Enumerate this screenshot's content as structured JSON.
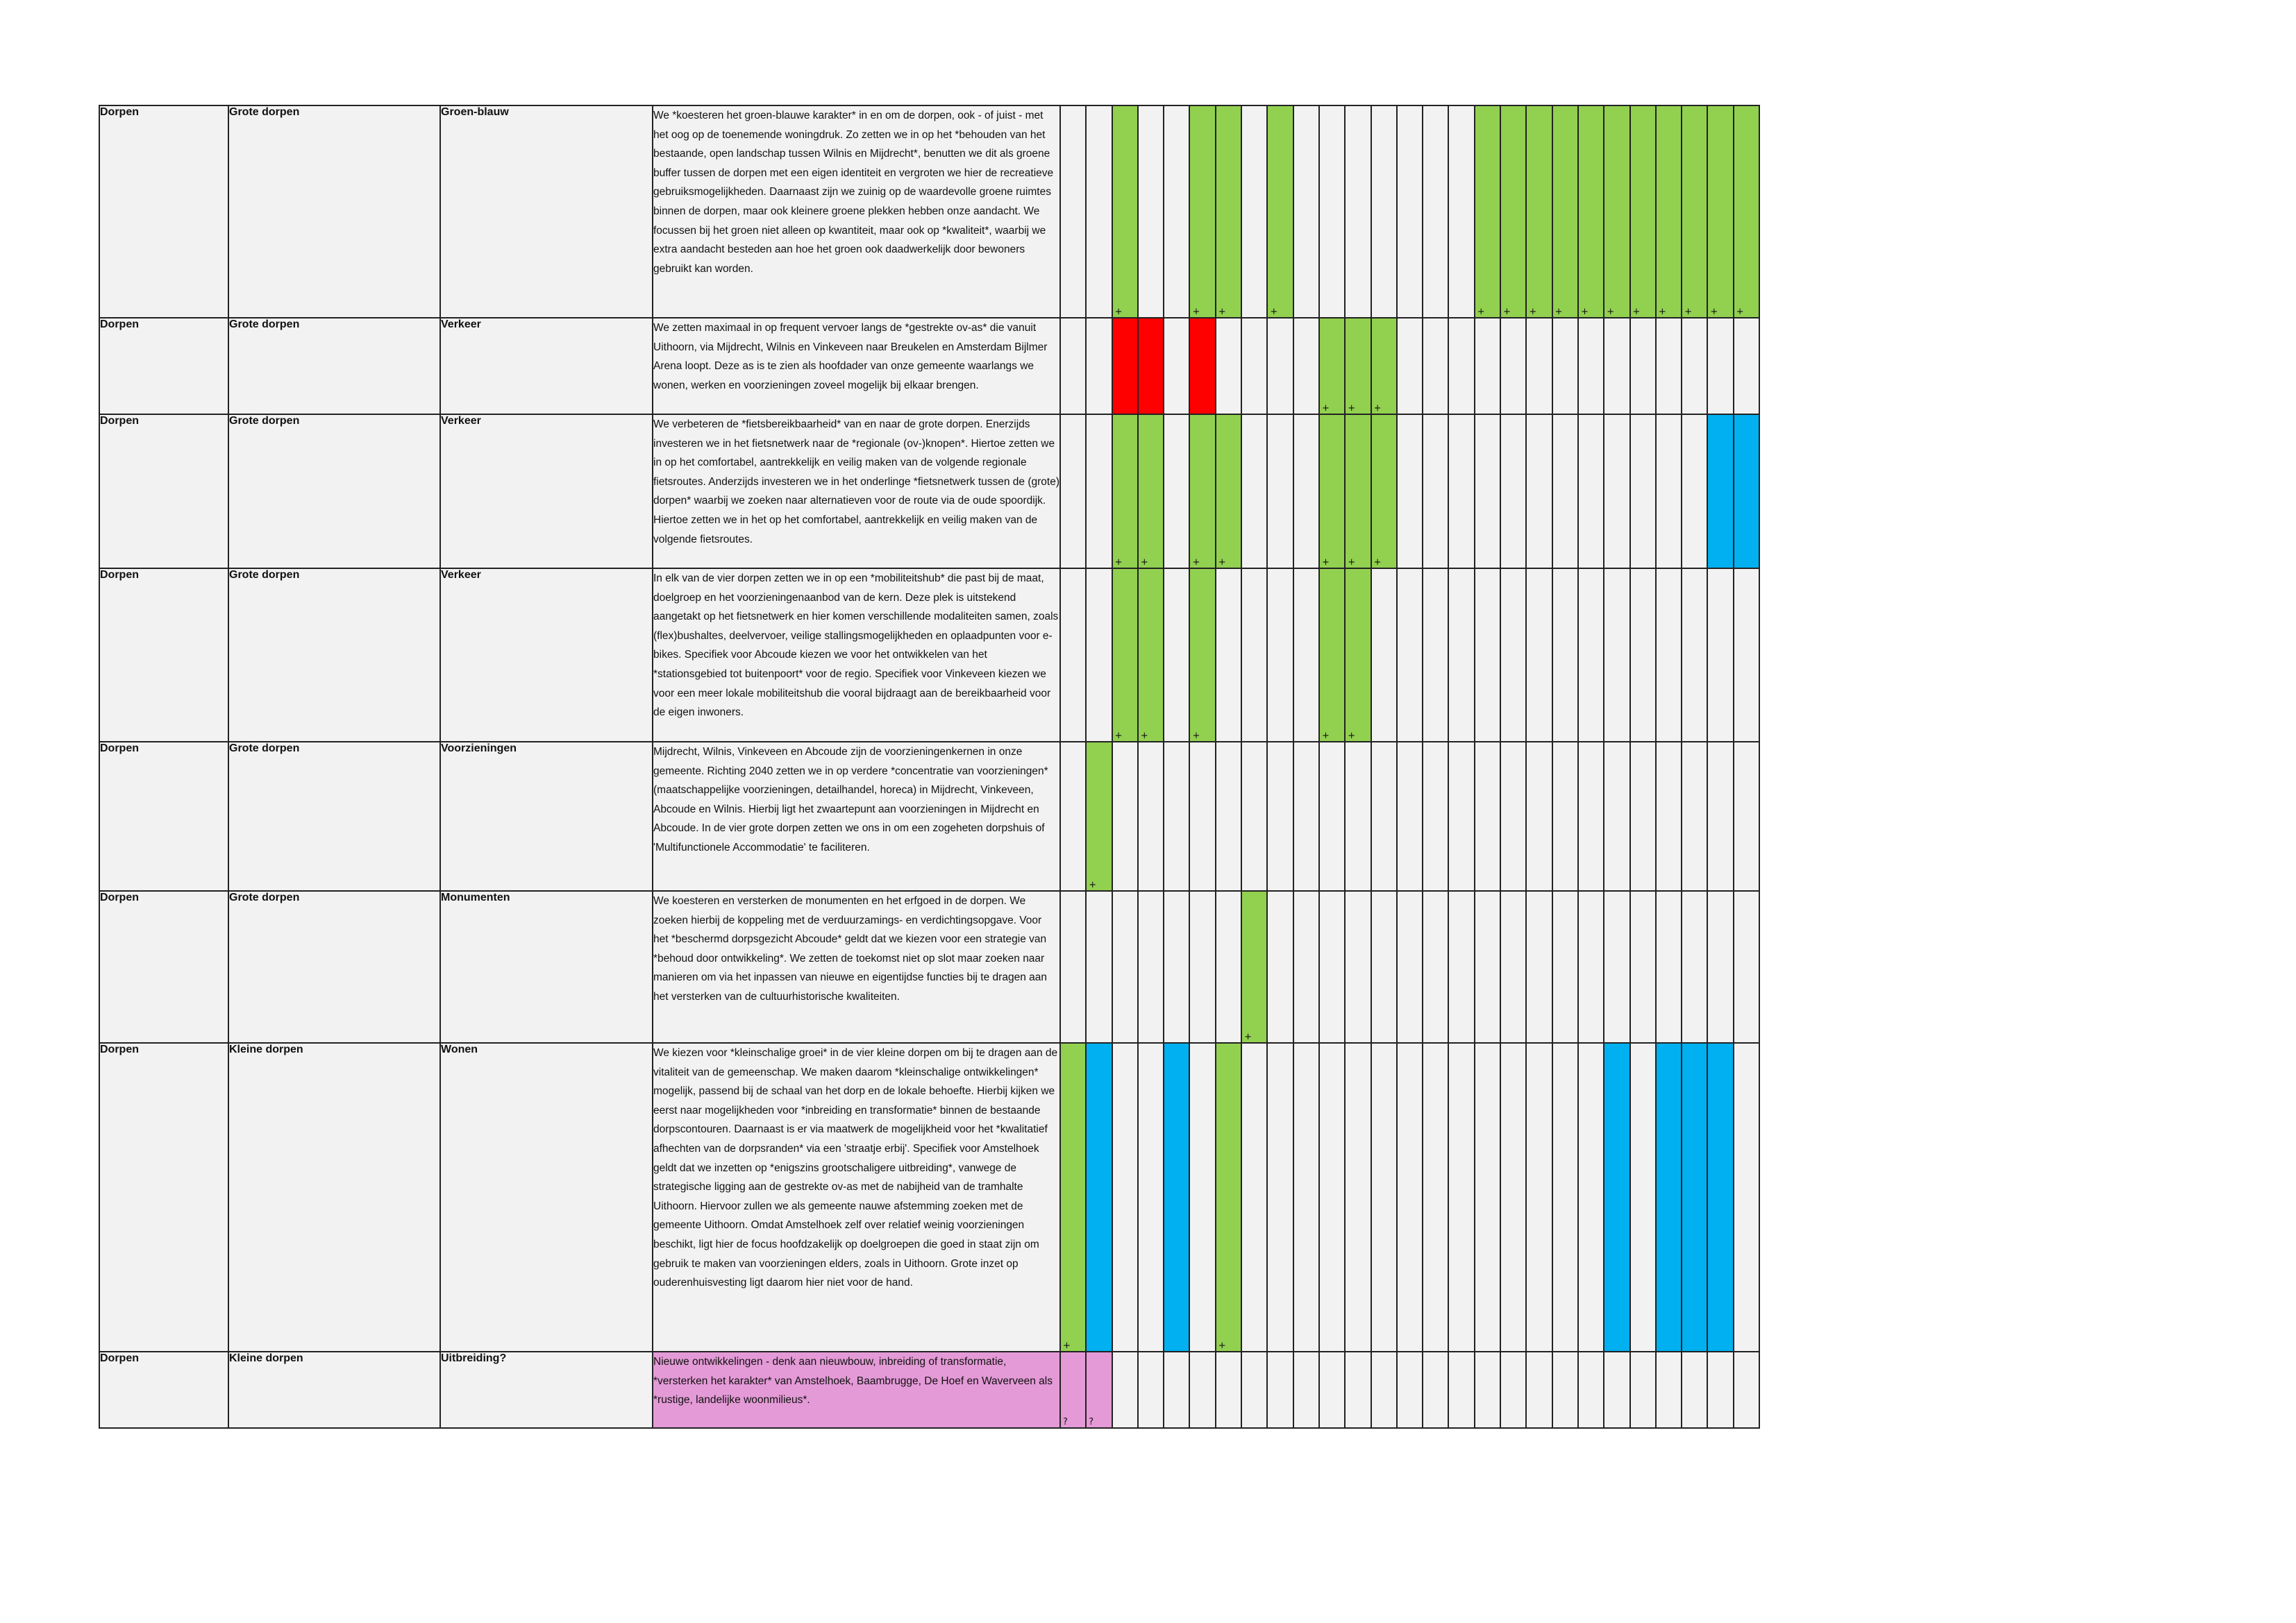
{
  "colors": {
    "green": "#92d050",
    "red": "#ff0000",
    "blue": "#00b0f0",
    "pink": "#e49ad7",
    "cell": "#f2f2f2"
  },
  "rows": [
    {
      "cat": "Dorpen",
      "sub": "Grote dorpen",
      "topic": "Groen-blauw",
      "text": "We *koesteren het groen-blauwe karakter* in en om de dorpen, ook - of juist - met het oog op de toenemende woningdruk. Zo zetten we in op het *behouden van het bestaande, open landschap tussen Wilnis en Mijdrecht*, benutten we dit als groene buffer tussen de dorpen met een eigen identiteit en vergroten we hier de recreatieve gebruiksmogelijkheden. Daarnaast zijn we zuinig op de waardevolle groene ruimtes binnen de dorpen, maar ook kleinere groene plekken hebben onze aandacht. We focussen bij het groen niet alleen op kwantiteit, maar ook op *kwaliteit*, waarbij we extra aandacht besteden aan hoe het groen ook daadwerkelijk door bewoners gebruikt kan worden.",
      "marks": [
        {
          "col": 3,
          "color": "green",
          "label": "+"
        },
        {
          "col": 6,
          "color": "green",
          "label": "+"
        },
        {
          "col": 7,
          "color": "green",
          "label": "+"
        },
        {
          "col": 9,
          "color": "green",
          "label": "+"
        },
        {
          "col": 17,
          "color": "green",
          "label": "+"
        },
        {
          "col": 18,
          "color": "green",
          "label": "+"
        },
        {
          "col": 19,
          "color": "green",
          "label": "+"
        },
        {
          "col": 20,
          "color": "green",
          "label": "+"
        },
        {
          "col": 21,
          "color": "green",
          "label": "+"
        },
        {
          "col": 22,
          "color": "green",
          "label": "+"
        },
        {
          "col": 23,
          "color": "green",
          "label": "+"
        },
        {
          "col": 24,
          "color": "green",
          "label": "+"
        },
        {
          "col": 25,
          "color": "green",
          "label": "+"
        },
        {
          "col": 26,
          "color": "green",
          "label": "+"
        },
        {
          "col": 27,
          "color": "green",
          "label": "+"
        }
      ]
    },
    {
      "cat": "Dorpen",
      "sub": "Grote dorpen",
      "topic": "Verkeer",
      "text": "We zetten maximaal in op frequent vervoer langs de *gestrekte ov-as* die vanuit Uithoorn, via Mijdrecht, Wilnis en Vinkeveen naar Breukelen en Amsterdam Bijlmer Arena loopt. Deze as is te zien als hoofdader van onze gemeente waarlangs we wonen, werken en voorzieningen zoveel mogelijk bij elkaar brengen.",
      "marks": [
        {
          "col": 3,
          "color": "red",
          "label": ""
        },
        {
          "col": 4,
          "color": "red",
          "label": ""
        },
        {
          "col": 6,
          "color": "red",
          "label": ""
        },
        {
          "col": 11,
          "color": "green",
          "label": "+"
        },
        {
          "col": 12,
          "color": "green",
          "label": "+"
        },
        {
          "col": 13,
          "color": "green",
          "label": "+"
        }
      ]
    },
    {
      "cat": "Dorpen",
      "sub": "Grote dorpen",
      "topic": "Verkeer",
      "text": "We verbeteren de *fietsbereikbaarheid* van en naar de grote dorpen. Enerzijds investeren we in het fietsnetwerk naar de *regionale (ov-)knopen*. Hiertoe zetten we in op het comfortabel, aantrekkelijk en veilig maken van de volgende regionale fietsroutes.  Anderzijds investeren we in het onderlinge *fietsnetwerk tussen de (grote) dorpen* waarbij we zoeken naar alternatieven voor de route via de oude spoordijk. Hiertoe zetten we in het op het comfortabel, aantrekkelijk en veilig maken van de volgende fietsroutes.",
      "marks": [
        {
          "col": 3,
          "color": "green",
          "label": "+"
        },
        {
          "col": 4,
          "color": "green",
          "label": "+"
        },
        {
          "col": 6,
          "color": "green",
          "label": "+"
        },
        {
          "col": 7,
          "color": "green",
          "label": "+"
        },
        {
          "col": 11,
          "color": "green",
          "label": "+"
        },
        {
          "col": 12,
          "color": "green",
          "label": "+"
        },
        {
          "col": 13,
          "color": "green",
          "label": "+"
        },
        {
          "col": 26,
          "color": "blue",
          "label": ""
        },
        {
          "col": 27,
          "color": "blue",
          "label": ""
        }
      ]
    },
    {
      "cat": "Dorpen",
      "sub": "Grote dorpen",
      "topic": "Verkeer",
      "text": "In elk van de vier dorpen zetten we in op een *mobiliteitshub* die past bij de maat, doelgroep en het voorzieningenaanbod van de kern. Deze plek is uitstekend aangetakt op het fietsnetwerk en hier komen verschillende modaliteiten samen, zoals (flex)bushaltes, deelvervoer, veilige stallingsmogelijkheden en oplaadpunten voor e-bikes. Specifiek voor Abcoude kiezen we voor het ontwikkelen van het *stationsgebied tot buitenpoort* voor de regio. Specifiek voor Vinkeveen kiezen we voor een meer lokale mobiliteitshub die vooral bijdraagt aan de bereikbaarheid voor de eigen inwoners.",
      "marks": [
        {
          "col": 3,
          "color": "green",
          "label": "+"
        },
        {
          "col": 4,
          "color": "green",
          "label": "+"
        },
        {
          "col": 6,
          "color": "green",
          "label": "+"
        },
        {
          "col": 11,
          "color": "green",
          "label": "+"
        },
        {
          "col": 12,
          "color": "green",
          "label": "+"
        }
      ]
    },
    {
      "cat": "Dorpen",
      "sub": "Grote dorpen",
      "topic": "Voorzieningen",
      "text": "Mijdrecht, Wilnis, Vinkeveen en Abcoude zijn de voorzieningenkernen in onze gemeente. Richting 2040 zetten we in op verdere *concentratie van voorzieningen* (maatschappelijke voorzieningen, detailhandel, horeca) in Mijdrecht, Vinkeveen, Abcoude en Wilnis. Hierbij ligt het zwaartepunt aan voorzieningen in Mijdrecht en Abcoude. In de vier grote dorpen zetten we ons in om een zogeheten dorpshuis of 'Multifunctionele Accommodatie' te faciliteren.",
      "marks": [
        {
          "col": 2,
          "color": "green",
          "label": "+"
        }
      ]
    },
    {
      "cat": "Dorpen",
      "sub": "Grote dorpen",
      "topic": "Monumenten",
      "text": "We koesteren en versterken de monumenten en het erfgoed in de dorpen. We zoeken hierbij de koppeling met de verduurzamings- en verdichtingsopgave. Voor het *beschermd dorpsgezicht Abcoude* geldt dat we kiezen voor een strategie van *behoud door ontwikkeling*. We zetten de toekomst niet op slot maar zoeken naar manieren om via het inpassen van nieuwe en eigentijdse functies bij te dragen aan het versterken van de cultuurhistorische kwaliteiten.",
      "marks": [
        {
          "col": 8,
          "color": "green",
          "label": "+"
        }
      ]
    },
    {
      "cat": "Dorpen",
      "sub": "Kleine dorpen",
      "topic": "Wonen",
      "text": "We kiezen voor *kleinschalige groei* in de vier kleine dorpen om bij te dragen aan de vitaliteit van de gemeenschap. We maken daarom *kleinschalige ontwikkelingen* mogelijk, passend bij de schaal van het dorp en de lokale behoefte. Hierbij kijken we eerst naar mogelijkheden voor *inbreiding en transformatie* binnen de bestaande dorpscontouren. Daarnaast is er via maatwerk de mogelijkheid voor het *kwalitatief afhechten van de dorpsranden* via een 'straatje erbij'. Specifiek voor Amstelhoek geldt dat we inzetten op *enigszins grootschaligere uitbreiding*, vanwege de strategische ligging aan de gestrekte ov-as met de nabijheid van de tramhalte Uithoorn. Hiervoor zullen we als gemeente nauwe afstemming zoeken met de gemeente Uithoorn. Omdat Amstelhoek zelf over relatief weinig voorzieningen beschikt, ligt hier de focus hoofdzakelijk op doelgroepen die goed in staat zijn om gebruik te maken van voorzieningen elders, zoals in Uithoorn. Grote inzet op ouderenhuisvesting ligt daarom hier niet voor de hand.",
      "marks": [
        {
          "col": 1,
          "color": "green",
          "label": "+"
        },
        {
          "col": 2,
          "color": "blue",
          "label": ""
        },
        {
          "col": 5,
          "color": "blue",
          "label": ""
        },
        {
          "col": 7,
          "color": "green",
          "label": "+"
        },
        {
          "col": 22,
          "color": "blue",
          "label": ""
        },
        {
          "col": 24,
          "color": "blue",
          "label": ""
        },
        {
          "col": 25,
          "color": "blue",
          "label": ""
        },
        {
          "col": 26,
          "color": "blue",
          "label": ""
        }
      ]
    },
    {
      "cat": "Dorpen",
      "sub": "Kleine dorpen",
      "topic": "Uitbreiding?",
      "pink": true,
      "text": "Nieuwe ontwikkelingen - denk aan nieuwbouw, inbreiding of transformatie, *versterken het karakter* van Amstelhoek, Baambrugge, De Hoef en Waverveen als *rustige, landelijke woonmilieus*.",
      "marks": [
        {
          "col": 1,
          "color": "pinkc",
          "label": "?"
        },
        {
          "col": 2,
          "color": "pinkc",
          "label": "?"
        }
      ]
    }
  ]
}
